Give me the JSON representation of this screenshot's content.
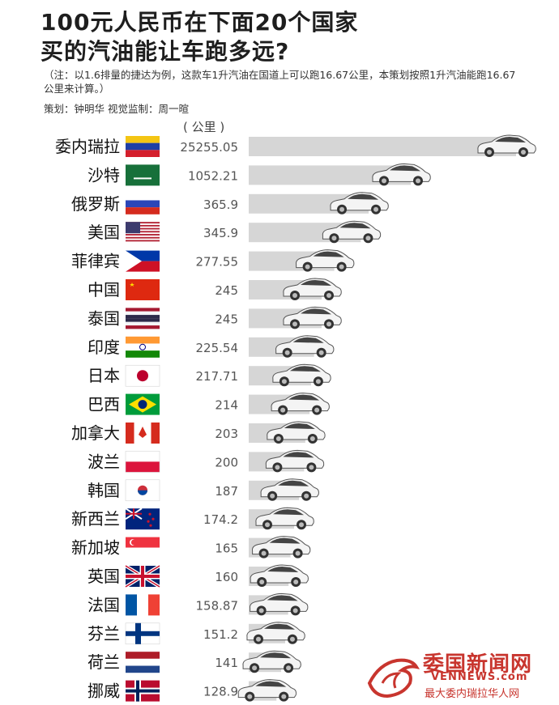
{
  "header": {
    "title_line1": "100元人民币在下面20个国家",
    "title_line2": "买的汽油能让车跑多远?",
    "note": "（注：以1.6排量的捷达为例，这款车1升汽油在国道上可以跑16.67公里，本策划按照1升汽油能跑16.67公里来计算。）",
    "credits": "策划：钟明华  视觉监制：周一暄",
    "unit": "( 公里 )"
  },
  "chart_data": {
    "type": "bar",
    "unit": "公里",
    "categories": [
      "委内瑞拉",
      "沙特",
      "俄罗斯",
      "美国",
      "菲律宾",
      "中国",
      "泰国",
      "印度",
      "日本",
      "巴西",
      "加拿大",
      "波兰",
      "韩国",
      "新西兰",
      "新加坡",
      "英国",
      "法国",
      "芬兰",
      "荷兰",
      "挪威"
    ],
    "value_labels": [
      "25255.05",
      "1052.21",
      "365.9",
      "345.9",
      "277.55",
      "245",
      "245",
      "225.54",
      "217.71",
      "214",
      "203",
      "200",
      "187",
      "174.2",
      "165",
      "160",
      "158.87",
      "151.2",
      "141",
      "128.9"
    ],
    "values": [
      25255.05,
      1052.21,
      365.9,
      345.9,
      277.55,
      245,
      245,
      225.54,
      217.71,
      214,
      203,
      200,
      187,
      174.2,
      165,
      160,
      158.87,
      151.2,
      141,
      128.9
    ],
    "bar_color": "#d6d6d6",
    "car_color": "#f2f2f2"
  },
  "watermark": {
    "title": "委国新闻网",
    "site": "VENNEWS.com",
    "tagline": "最大委内瑞拉华人网"
  }
}
